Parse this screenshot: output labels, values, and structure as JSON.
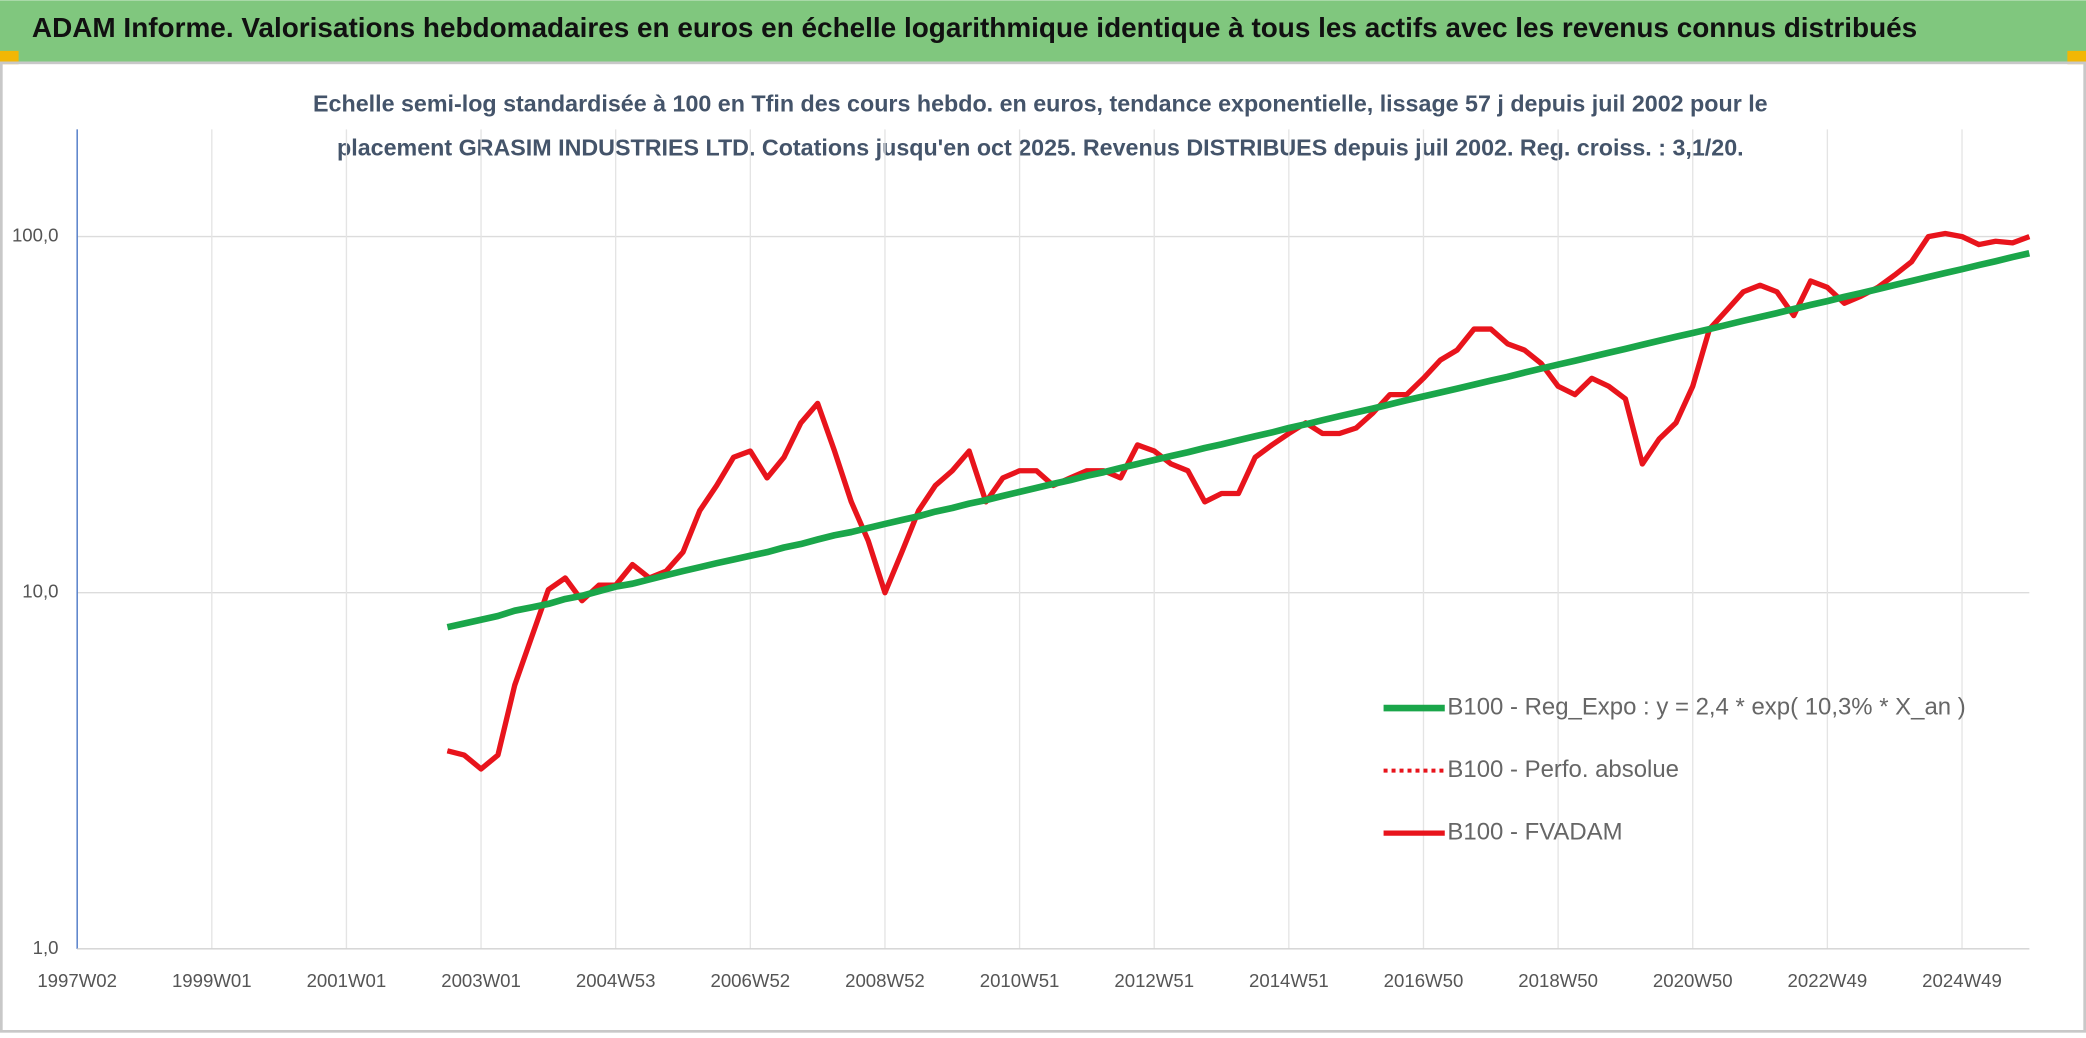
{
  "header": {
    "title": "ADAM Informe. Valorisations hebdomadaires en euros en échelle logarithmique identique à tous les actifs avec les revenus connus distribués"
  },
  "chart_data": {
    "type": "line",
    "subtitle": [
      "Echelle semi-log standardisée à 100 en Tfin des cours hebdo. en euros, tendance exponentielle, lissage 57 j depuis juil 2002 pour le",
      "placement GRASIM INDUSTRIES LTD. Cotations jusqu'en oct 2025. Revenus DISTRIBUES depuis juil 2002. Reg. croiss. : 3,1/20."
    ],
    "log_y": true,
    "grid": true,
    "legend": "lower right",
    "ylim": [
      1,
      200
    ],
    "yticks": [
      {
        "value": 1,
        "label": "1,0"
      },
      {
        "value": 10,
        "label": "10,0"
      },
      {
        "value": 100,
        "label": "100,0"
      }
    ],
    "categories": [
      "1997W02",
      null,
      null,
      null,
      null,
      null,
      null,
      null,
      "1999W01",
      null,
      null,
      null,
      null,
      null,
      null,
      null,
      "2001W01",
      null,
      null,
      null,
      null,
      null,
      null,
      null,
      "2003W01",
      null,
      null,
      null,
      null,
      null,
      null,
      null,
      "2004W53",
      null,
      null,
      null,
      null,
      null,
      null,
      null,
      "2006W52",
      null,
      null,
      null,
      null,
      null,
      null,
      null,
      "2008W52",
      null,
      null,
      null,
      null,
      null,
      null,
      null,
      "2010W51",
      null,
      null,
      null,
      null,
      null,
      null,
      null,
      "2012W51",
      null,
      null,
      null,
      null,
      null,
      null,
      null,
      "2014W51",
      null,
      null,
      null,
      null,
      null,
      null,
      null,
      "2016W50",
      null,
      null,
      null,
      null,
      null,
      null,
      null,
      "2018W50",
      null,
      null,
      null,
      null,
      null,
      null,
      null,
      "2020W50",
      null,
      null,
      null,
      null,
      null,
      null,
      null,
      "2022W49",
      null,
      null,
      null,
      null,
      null,
      null,
      null,
      "2024W49",
      null,
      null,
      null,
      null
    ],
    "series": [
      {
        "name": "B100 - Reg_Expo : y = 2,4 * exp( 10,3% *  X_an )",
        "color": "#1aa64a",
        "style": "solid",
        "width": 5,
        "values": [
          null,
          null,
          null,
          null,
          null,
          null,
          null,
          null,
          null,
          null,
          null,
          null,
          null,
          null,
          null,
          null,
          null,
          null,
          null,
          null,
          null,
          null,
          8.0,
          8.2,
          8.4,
          8.6,
          8.9,
          9.1,
          9.3,
          9.6,
          9.8,
          10.1,
          10.4,
          10.6,
          10.9,
          11.2,
          11.5,
          11.8,
          12.1,
          12.4,
          12.7,
          13.0,
          13.4,
          13.7,
          14.1,
          14.5,
          14.8,
          15.2,
          15.6,
          16.0,
          16.4,
          16.9,
          17.3,
          17.8,
          18.2,
          18.7,
          19.2,
          19.7,
          20.2,
          20.7,
          21.3,
          21.8,
          22.4,
          23.0,
          23.6,
          24.2,
          24.8,
          25.5,
          26.1,
          26.8,
          27.5,
          28.2,
          29.0,
          29.7,
          30.5,
          31.3,
          32.1,
          32.9,
          33.8,
          34.7,
          35.6,
          36.5,
          37.4,
          38.4,
          39.4,
          40.4,
          41.5,
          42.6,
          43.7,
          44.8,
          46.0,
          47.2,
          48.4,
          49.7,
          51.0,
          52.3,
          53.6,
          55.0,
          56.5,
          58.0,
          59.5,
          61.0,
          62.6,
          64.3,
          65.9,
          67.7,
          69.4,
          71.2,
          73.1,
          75.0,
          77.0,
          79.0,
          81.0,
          83.2,
          85.3,
          87.6,
          89.8
        ]
      },
      {
        "name": "B100 - Perfo. absolue",
        "color": "#e8141c",
        "style": "dotted",
        "width": 3,
        "values": [
          null,
          null,
          null,
          null,
          null,
          null,
          null,
          null,
          null,
          null,
          null,
          null,
          null,
          null,
          null,
          null,
          null,
          null,
          null,
          null,
          null,
          null,
          3.6,
          3.5,
          3.2,
          3.5,
          5.5,
          7.5,
          10.2,
          11,
          9.5,
          10.5,
          10.5,
          12,
          11,
          11.5,
          13,
          17,
          20,
          24,
          25,
          21,
          24,
          30,
          34,
          25,
          18,
          14,
          10,
          13,
          17,
          20,
          22,
          25,
          18,
          21,
          22,
          22,
          20,
          21,
          22,
          22,
          21,
          26,
          25,
          23,
          22,
          18,
          19,
          19,
          24,
          26,
          28,
          30,
          28,
          28,
          29,
          32,
          36,
          36,
          40,
          45,
          48,
          55,
          55,
          50,
          48,
          44,
          38,
          36,
          40,
          38,
          35,
          23,
          27,
          30,
          38,
          55,
          62,
          70,
          73,
          70,
          60,
          75,
          72,
          65,
          68,
          72,
          78,
          85,
          100,
          102,
          100,
          95,
          97,
          96,
          100
        ]
      },
      {
        "name": "B100 - FVADAM",
        "color": "#e8141c",
        "style": "solid",
        "width": 4,
        "values": [
          null,
          null,
          null,
          null,
          null,
          null,
          null,
          null,
          null,
          null,
          null,
          null,
          null,
          null,
          null,
          null,
          null,
          null,
          null,
          null,
          null,
          null,
          3.6,
          3.5,
          3.2,
          3.5,
          5.5,
          7.5,
          10.2,
          11,
          9.5,
          10.5,
          10.5,
          12,
          11,
          11.5,
          13,
          17,
          20,
          24,
          25,
          21,
          24,
          30,
          34,
          25,
          18,
          14,
          10,
          13,
          17,
          20,
          22,
          25,
          18,
          21,
          22,
          22,
          20,
          21,
          22,
          22,
          21,
          26,
          25,
          23,
          22,
          18,
          19,
          19,
          24,
          26,
          28,
          30,
          28,
          28,
          29,
          32,
          36,
          36,
          40,
          45,
          48,
          55,
          55,
          50,
          48,
          44,
          38,
          36,
          40,
          38,
          35,
          23,
          27,
          30,
          38,
          55,
          62,
          70,
          73,
          70,
          60,
          75,
          72,
          65,
          68,
          72,
          78,
          85,
          100,
          102,
          100,
          95,
          97,
          96,
          100
        ]
      }
    ]
  }
}
